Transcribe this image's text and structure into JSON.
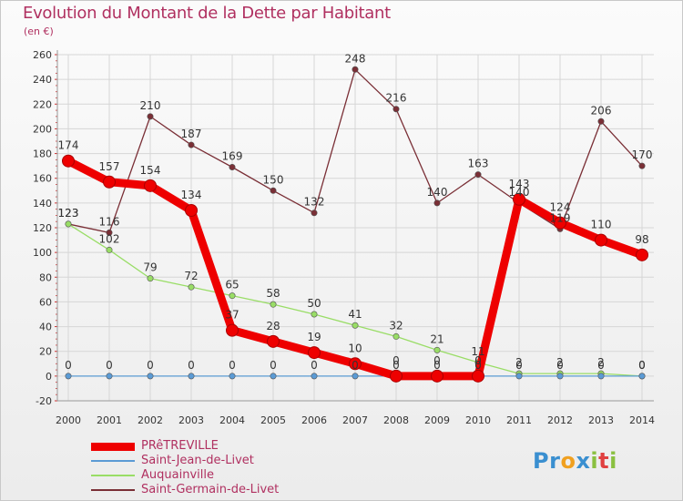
{
  "title": "Evolution du Montant de la Dette par Habitant",
  "subtitle": "(en €)",
  "logo": "Proxiti",
  "colors": {
    "title": "#b03060",
    "grid": "#d6d6d6",
    "axis": "#999999"
  },
  "chart_data": {
    "type": "line",
    "title": "Evolution du Montant de la Dette par Habitant",
    "ylabel": "(en €)",
    "xlabel": "",
    "x": [
      "2000",
      "2001",
      "2002",
      "2003",
      "2004",
      "2005",
      "2006",
      "2007",
      "2008",
      "2009",
      "2010",
      "2011",
      "2012",
      "2013",
      "2014"
    ],
    "ylim": [
      -20,
      260
    ],
    "yticks": [
      -20,
      0,
      20,
      40,
      60,
      80,
      100,
      120,
      140,
      160,
      180,
      200,
      220,
      240,
      260
    ],
    "grid": true,
    "legend_position": "bottom-left",
    "series": [
      {
        "name": "PRêTREVILLE",
        "color": "#ee0000",
        "values": [
          174,
          157,
          154,
          134,
          37,
          28,
          19,
          10,
          0,
          0,
          0,
          143,
          124,
          110,
          98
        ],
        "labels": [
          "174",
          "157",
          "154",
          "134",
          "37",
          "28",
          "19",
          "10",
          "0",
          "0",
          "0",
          "143",
          "124",
          "110",
          "98"
        ]
      },
      {
        "name": "Saint-Jean-de-Livet",
        "color": "#5b9bd5",
        "values": [
          0,
          0,
          0,
          0,
          0,
          0,
          0,
          0,
          0,
          0,
          0,
          0,
          0,
          0,
          0
        ],
        "labels": [
          "0",
          "0",
          "0",
          "0",
          "0",
          "0",
          "0",
          "0",
          "0",
          "0",
          "0",
          "0",
          "0",
          "0",
          "0"
        ]
      },
      {
        "name": "Auquainville",
        "color": "#99dd66",
        "values": [
          123,
          102,
          79,
          72,
          65,
          58,
          50,
          41,
          32,
          21,
          11,
          2,
          2,
          2,
          0
        ],
        "labels": [
          "123",
          "102",
          "79",
          "72",
          "65",
          "58",
          "50",
          "41",
          "32",
          "21",
          "11",
          "2",
          "2",
          "2",
          "0"
        ]
      },
      {
        "name": "Saint-Germain-de-Livet",
        "color": "#7a2f36",
        "values": [
          123,
          116,
          210,
          187,
          169,
          150,
          132,
          248,
          216,
          140,
          163,
          140,
          119,
          206,
          170
        ],
        "labels": [
          "123",
          "116",
          "210",
          "187",
          "169",
          "150",
          "132",
          "248",
          "216",
          "140",
          "163",
          "140",
          "119",
          "206",
          "170"
        ]
      }
    ]
  }
}
